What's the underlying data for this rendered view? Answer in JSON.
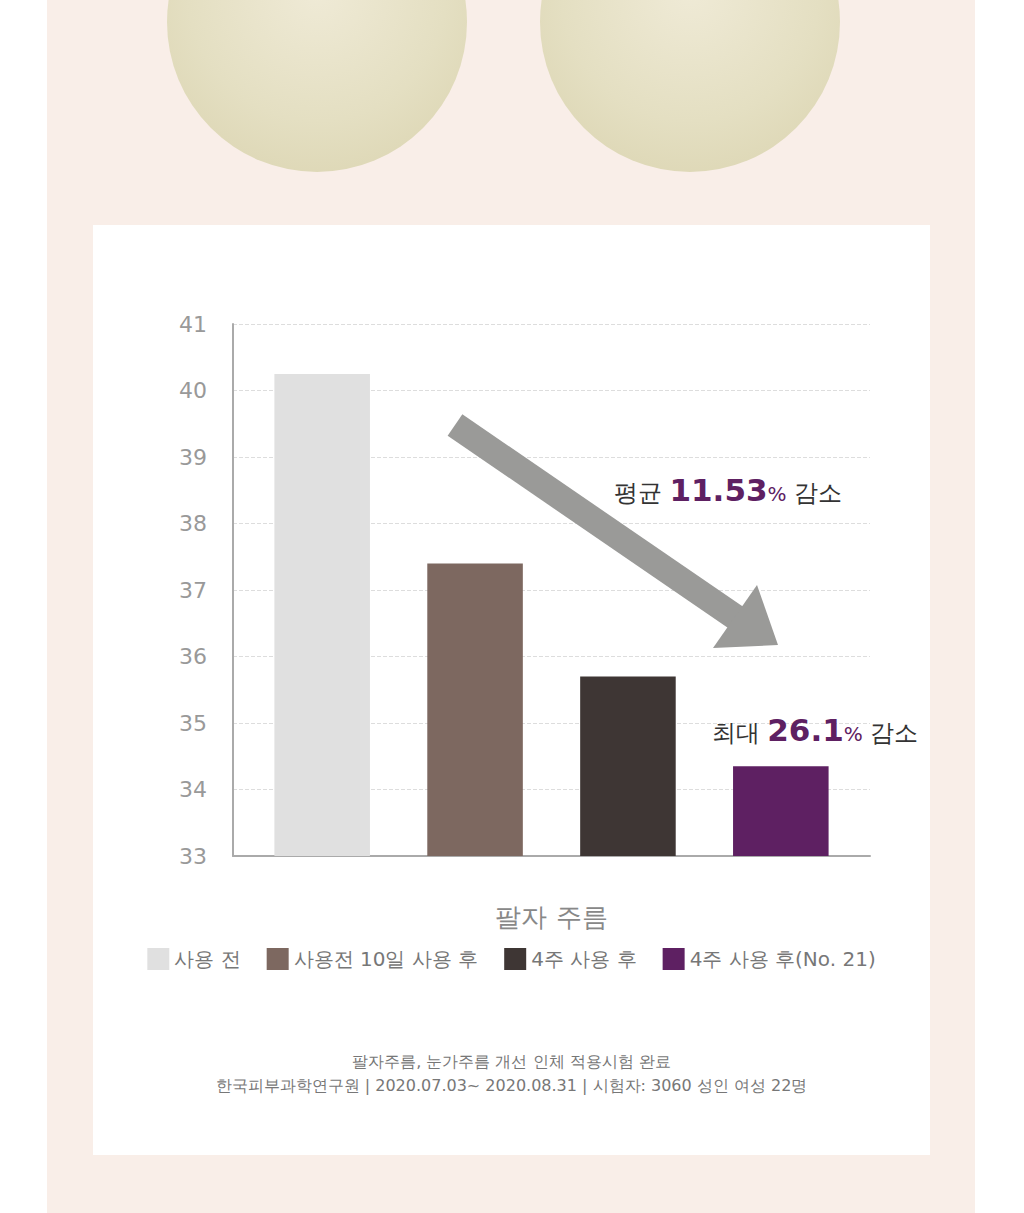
{
  "chart_data": {
    "type": "bar",
    "categories": [
      "팔자 주름"
    ],
    "series": [
      {
        "name": "사용 전",
        "color": "#e0e0e0",
        "values": [
          40.25
        ]
      },
      {
        "name": "사용전 10일 사용 후",
        "color": "#7d6860",
        "values": [
          37.4
        ]
      },
      {
        "name": "4주 사용 후",
        "color": "#3e3634",
        "values": [
          35.7
        ]
      },
      {
        "name": "4주 사용 후(No. 21)",
        "color": "#5e2062",
        "values": [
          34.35
        ]
      }
    ],
    "ylim": [
      33,
      41
    ],
    "yticks": [
      33,
      34,
      35,
      36,
      37,
      38,
      39,
      40,
      41
    ],
    "grid": true,
    "legend": "bottom",
    "annotations": [
      "평균 11.53% 감소",
      "최대 26.1% 감소"
    ],
    "footnote": [
      "팔자주름, 눈가주름 개선 인체 적용시험 완료",
      "한국피부과학연구원 | 2020.07.03~ 2020.08.31 | 시험자: 3060 성인 여성 22명"
    ]
  }
}
